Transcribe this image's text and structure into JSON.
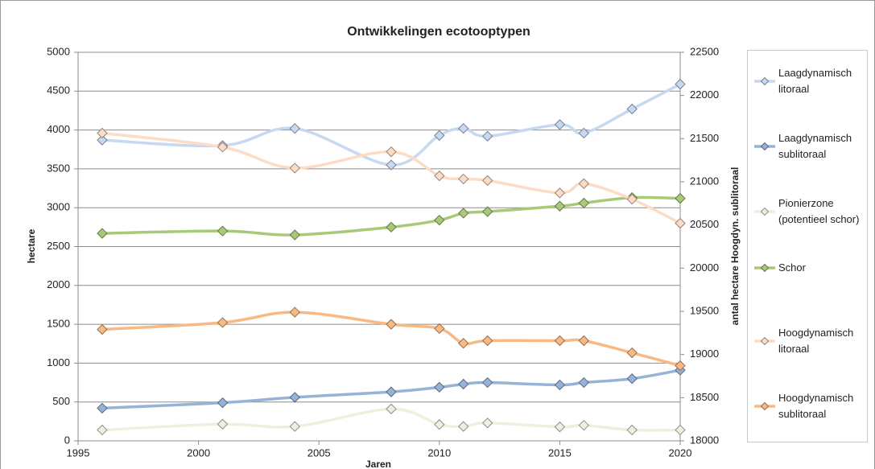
{
  "chart_data": {
    "type": "line",
    "title": "Ontwikkelingen ecotooptypen",
    "x_label": "Jaren",
    "y_label": "hectare",
    "y2_label": "antal hectare Hoogdyn. sublitoraal",
    "x": [
      1996,
      2001,
      2004,
      2008,
      2010,
      2011,
      2012,
      2015,
      2016,
      2018,
      2020
    ],
    "xlim": [
      1995,
      2020
    ],
    "xticks": [
      1995,
      2000,
      2005,
      2010,
      2015,
      2020
    ],
    "ylim": [
      0,
      5000
    ],
    "yticks": [
      0,
      500,
      1000,
      1500,
      2000,
      2500,
      3000,
      3500,
      4000,
      4500,
      5000
    ],
    "y2lim": [
      18000,
      22500
    ],
    "y2ticks": [
      18000,
      18500,
      19000,
      19500,
      20000,
      20500,
      21000,
      21500,
      22000,
      22500
    ],
    "grid": true,
    "smooth": true,
    "legend": "right",
    "series": [
      {
        "name": "Laagdynamisch litoraal",
        "color": "#c6d9f1",
        "values": [
          3870,
          3800,
          4020,
          3550,
          3930,
          4020,
          3920,
          4070,
          3960,
          4270,
          4590
        ]
      },
      {
        "name": "Laagdynamisch sublitoraal",
        "color": "#95b3d7",
        "values": [
          420,
          490,
          560,
          630,
          690,
          730,
          750,
          720,
          750,
          800,
          910
        ]
      },
      {
        "name": "Pionierzone (potentieel schor)",
        "color": "#ebf1de",
        "values": [
          140,
          215,
          185,
          410,
          210,
          185,
          230,
          180,
          200,
          140,
          140
        ]
      },
      {
        "name": "Schor",
        "color": "#a9c878",
        "values": [
          2670,
          2700,
          2650,
          2750,
          2840,
          2930,
          2950,
          3020,
          3060,
          3130,
          3120
        ]
      },
      {
        "name": "Hoogdynamisch litoraal",
        "color": "#fcdcc6",
        "values": [
          3960,
          3780,
          3510,
          3720,
          3410,
          3370,
          3350,
          3190,
          3310,
          3110,
          2800
        ]
      },
      {
        "name": "Hoogdynamisch sublitoraal",
        "color": "#f9b983",
        "axis": "y2",
        "values": [
          19290,
          19370,
          19490,
          19350,
          19300,
          19130,
          19160,
          19160,
          19160,
          19020,
          18870
        ]
      }
    ]
  }
}
